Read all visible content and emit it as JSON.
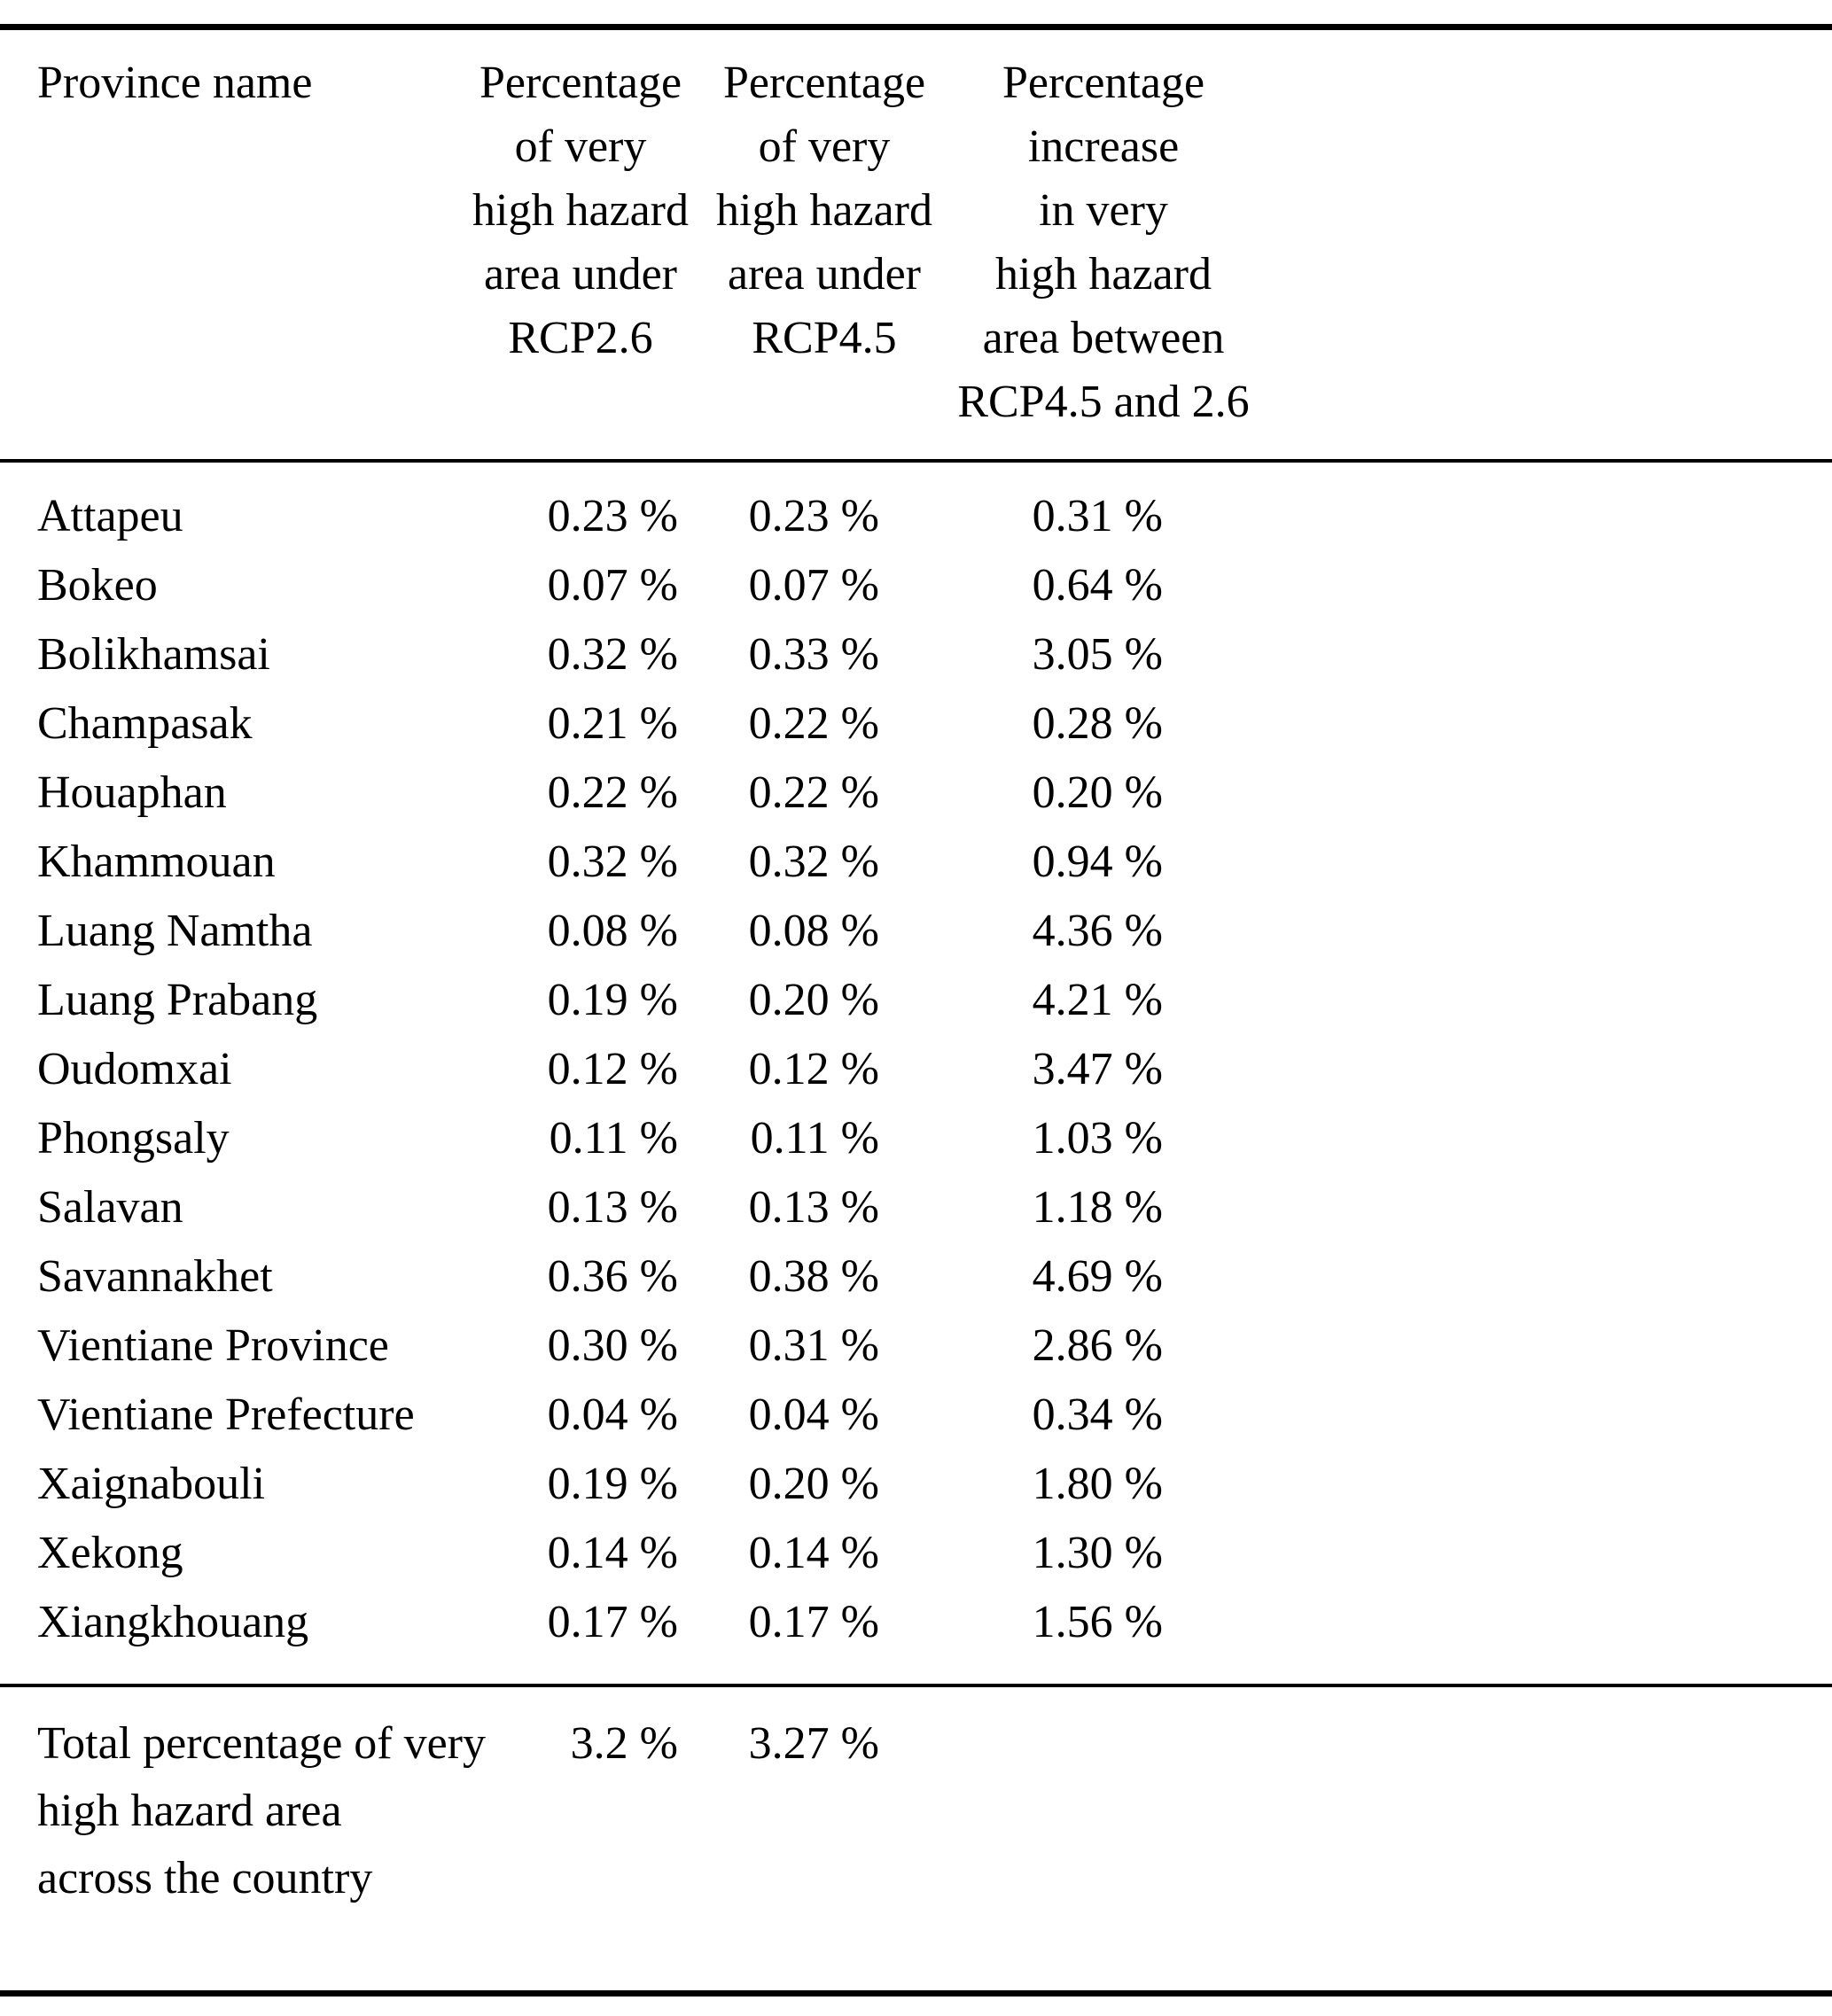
{
  "table": {
    "header": {
      "province": "Province name",
      "col_rcp26": "Percentage\nof very\nhigh hazard\narea under\nRCP2.6",
      "col_rcp45": "Percentage\nof very\nhigh hazard\narea under\nRCP4.5",
      "col_increase": "Percentage\nincrease\nin very\nhigh hazard\narea between\nRCP4.5 and 2.6"
    },
    "rows": [
      {
        "province": "Attapeu",
        "rcp26": "0.23 %",
        "rcp45": "0.23 %",
        "increase": "0.31 %"
      },
      {
        "province": "Bokeo",
        "rcp26": "0.07 %",
        "rcp45": "0.07 %",
        "increase": "0.64 %"
      },
      {
        "province": "Bolikhamsai",
        "rcp26": "0.32 %",
        "rcp45": "0.33 %",
        "increase": "3.05 %"
      },
      {
        "province": "Champasak",
        "rcp26": "0.21 %",
        "rcp45": "0.22 %",
        "increase": "0.28 %"
      },
      {
        "province": "Houaphan",
        "rcp26": "0.22 %",
        "rcp45": "0.22 %",
        "increase": "0.20 %"
      },
      {
        "province": "Khammouan",
        "rcp26": "0.32 %",
        "rcp45": "0.32 %",
        "increase": "0.94 %"
      },
      {
        "province": "Luang Namtha",
        "rcp26": "0.08 %",
        "rcp45": "0.08 %",
        "increase": "4.36 %"
      },
      {
        "province": "Luang Prabang",
        "rcp26": "0.19 %",
        "rcp45": "0.20 %",
        "increase": "4.21 %"
      },
      {
        "province": "Oudomxai",
        "rcp26": "0.12 %",
        "rcp45": "0.12 %",
        "increase": "3.47 %"
      },
      {
        "province": "Phongsaly",
        "rcp26": "0.11 %",
        "rcp45": "0.11 %",
        "increase": "1.03 %"
      },
      {
        "province": "Salavan",
        "rcp26": "0.13 %",
        "rcp45": "0.13 %",
        "increase": "1.18 %"
      },
      {
        "province": "Savannakhet",
        "rcp26": "0.36 %",
        "rcp45": "0.38 %",
        "increase": "4.69 %"
      },
      {
        "province": "Vientiane Province",
        "rcp26": "0.30 %",
        "rcp45": "0.31 %",
        "increase": "2.86 %"
      },
      {
        "province": "Vientiane Prefecture",
        "rcp26": "0.04 %",
        "rcp45": "0.04 %",
        "increase": "0.34 %"
      },
      {
        "province": "Xaignabouli",
        "rcp26": "0.19 %",
        "rcp45": "0.20 %",
        "increase": "1.80 %"
      },
      {
        "province": "Xekong",
        "rcp26": "0.14 %",
        "rcp45": "0.14 %",
        "increase": "1.30 %"
      },
      {
        "province": "Xiangkhouang",
        "rcp26": "0.17 %",
        "rcp45": "0.17 %",
        "increase": "1.56 %"
      }
    ],
    "total": {
      "label": "Total percentage of very\nhigh hazard area\nacross the country",
      "rcp26": "3.2 %",
      "rcp45": "3.27 %",
      "increase": ""
    }
  },
  "chart_data": {
    "type": "table",
    "columns": [
      "Province name",
      "Percentage of very high hazard area under RCP2.6",
      "Percentage of very high hazard area under RCP4.5",
      "Percentage increase in very high hazard area between RCP4.5 and 2.6"
    ],
    "unit": "%",
    "rows": [
      [
        "Attapeu",
        0.23,
        0.23,
        0.31
      ],
      [
        "Bokeo",
        0.07,
        0.07,
        0.64
      ],
      [
        "Bolikhamsai",
        0.32,
        0.33,
        3.05
      ],
      [
        "Champasak",
        0.21,
        0.22,
        0.28
      ],
      [
        "Houaphan",
        0.22,
        0.22,
        0.2
      ],
      [
        "Khammouan",
        0.32,
        0.32,
        0.94
      ],
      [
        "Luang Namtha",
        0.08,
        0.08,
        4.36
      ],
      [
        "Luang Prabang",
        0.19,
        0.2,
        4.21
      ],
      [
        "Oudomxai",
        0.12,
        0.12,
        3.47
      ],
      [
        "Phongsaly",
        0.11,
        0.11,
        1.03
      ],
      [
        "Salavan",
        0.13,
        0.13,
        1.18
      ],
      [
        "Savannakhet",
        0.36,
        0.38,
        4.69
      ],
      [
        "Vientiane Province",
        0.3,
        0.31,
        2.86
      ],
      [
        "Vientiane Prefecture",
        0.04,
        0.04,
        0.34
      ],
      [
        "Xaignabouli",
        0.19,
        0.2,
        1.8
      ],
      [
        "Xekong",
        0.14,
        0.14,
        1.3
      ],
      [
        "Xiangkhouang",
        0.17,
        0.17,
        1.56
      ]
    ],
    "total": [
      "Total percentage of very high hazard area across the country",
      3.2,
      3.27,
      null
    ]
  }
}
